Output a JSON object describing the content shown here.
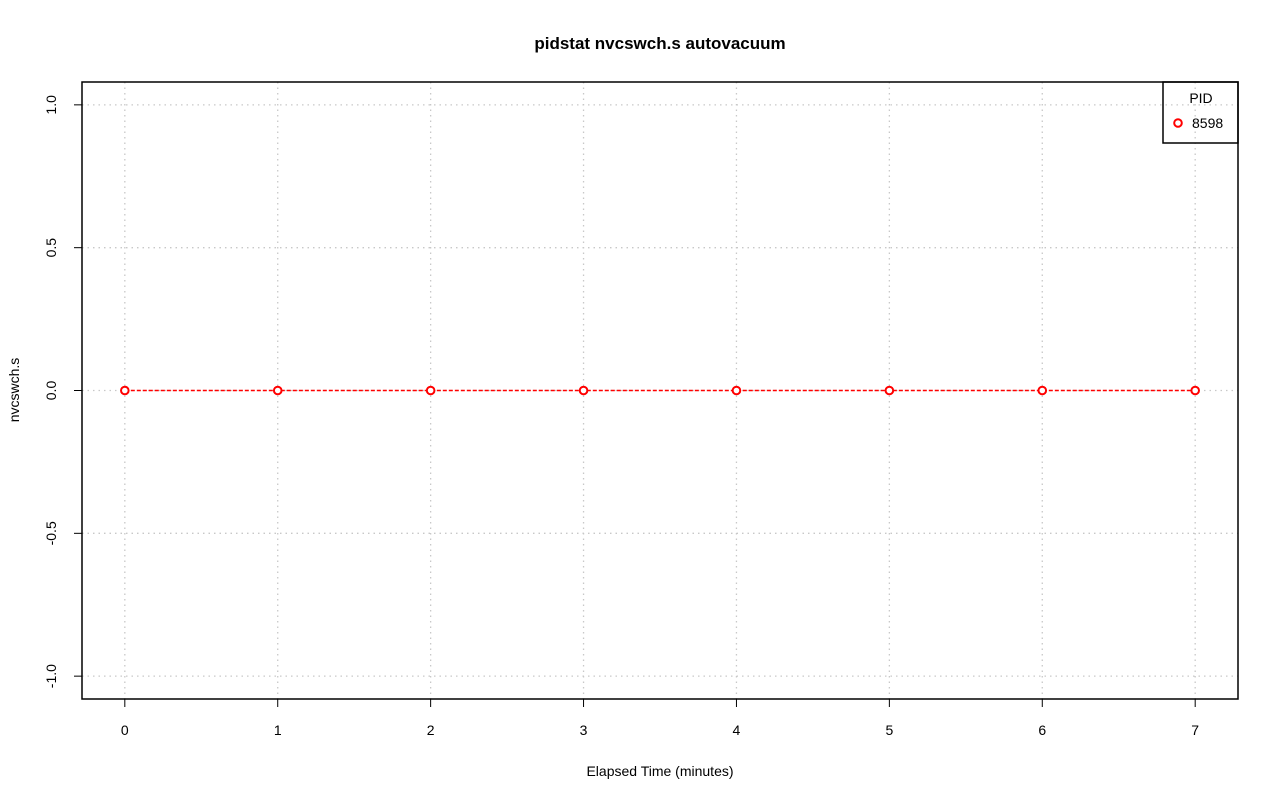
{
  "chart_data": {
    "type": "line",
    "title": "pidstat nvcswch.s autovacuum",
    "xlabel": "Elapsed Time (minutes)",
    "ylabel": "nvcswch.s",
    "xlim": [
      -0.28,
      7.28
    ],
    "ylim": [
      -1.08,
      1.08
    ],
    "x_ticks": [
      "0",
      "1",
      "2",
      "3",
      "4",
      "5",
      "6",
      "7"
    ],
    "y_ticks": [
      "-1.0",
      "-0.5",
      "0.0",
      "0.5",
      "1.0"
    ],
    "grid": true,
    "legend": {
      "title": "PID",
      "placement": "top-right"
    },
    "series": [
      {
        "name": "8598",
        "color": "#ff0000",
        "x": [
          0,
          1,
          2,
          3,
          4,
          5,
          6,
          7
        ],
        "y": [
          0,
          0,
          0,
          0,
          0,
          0,
          0,
          0
        ]
      }
    ]
  }
}
